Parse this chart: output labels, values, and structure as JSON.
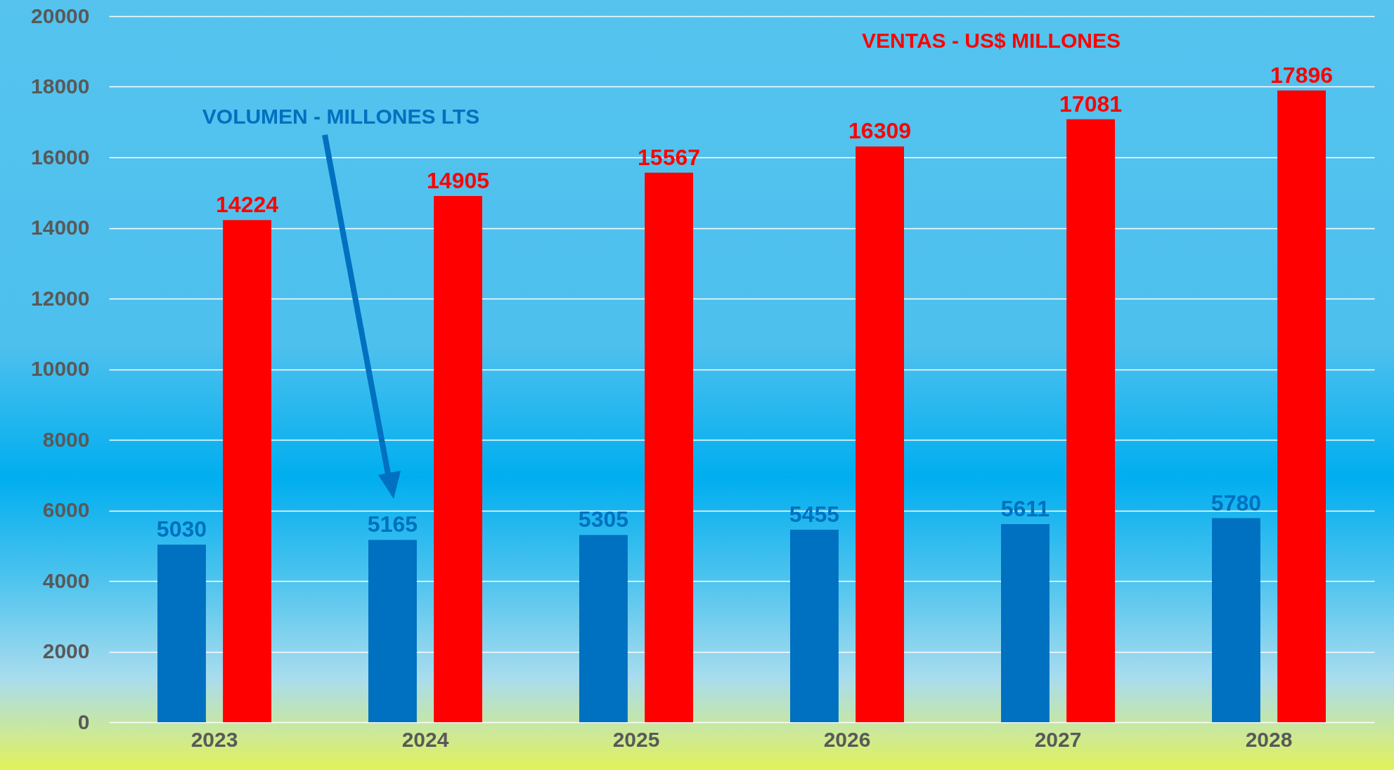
{
  "chart_data": {
    "type": "bar",
    "categories": [
      "2023",
      "2024",
      "2025",
      "2026",
      "2027",
      "2028"
    ],
    "series": [
      {
        "name": "VOLUMEN - MILLONES LTS",
        "color": "#0070c0",
        "values": [
          5030,
          5165,
          5305,
          5455,
          5611,
          5780
        ]
      },
      {
        "name": "VENTAS -  US$ MILLONES",
        "color": "#ff0000",
        "values": [
          14224,
          14905,
          15567,
          16309,
          17081,
          17896
        ]
      }
    ],
    "ylim": [
      0,
      20000
    ],
    "yticks": [
      0,
      2000,
      4000,
      6000,
      8000,
      10000,
      12000,
      14000,
      16000,
      18000,
      20000
    ],
    "grid": "y",
    "data_labels": true,
    "legend": false
  }
}
